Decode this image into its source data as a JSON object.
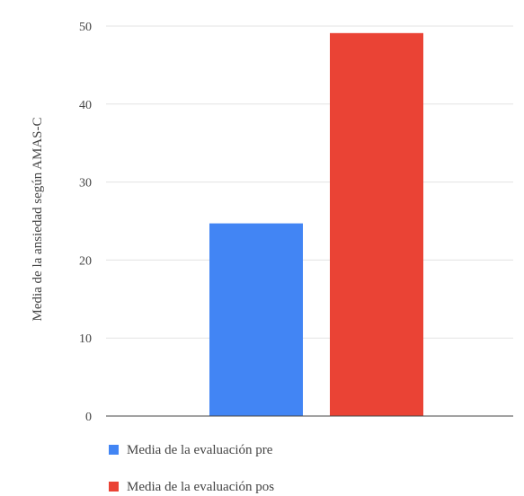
{
  "chart_data": {
    "type": "bar",
    "title": "",
    "ylabel": "Media de la ansiedad según AMAS-C",
    "xlabel": "",
    "ylim": [
      0,
      50
    ],
    "yticks": [
      0,
      10,
      20,
      30,
      40,
      50
    ],
    "grid": true,
    "legend_position": "bottom",
    "series": [
      {
        "name": "Media de la evaluación pre",
        "value": 24.7,
        "color": "#4285f4"
      },
      {
        "name": "Media de la evaluación pos",
        "value": 49.1,
        "color": "#ea4335"
      }
    ]
  }
}
